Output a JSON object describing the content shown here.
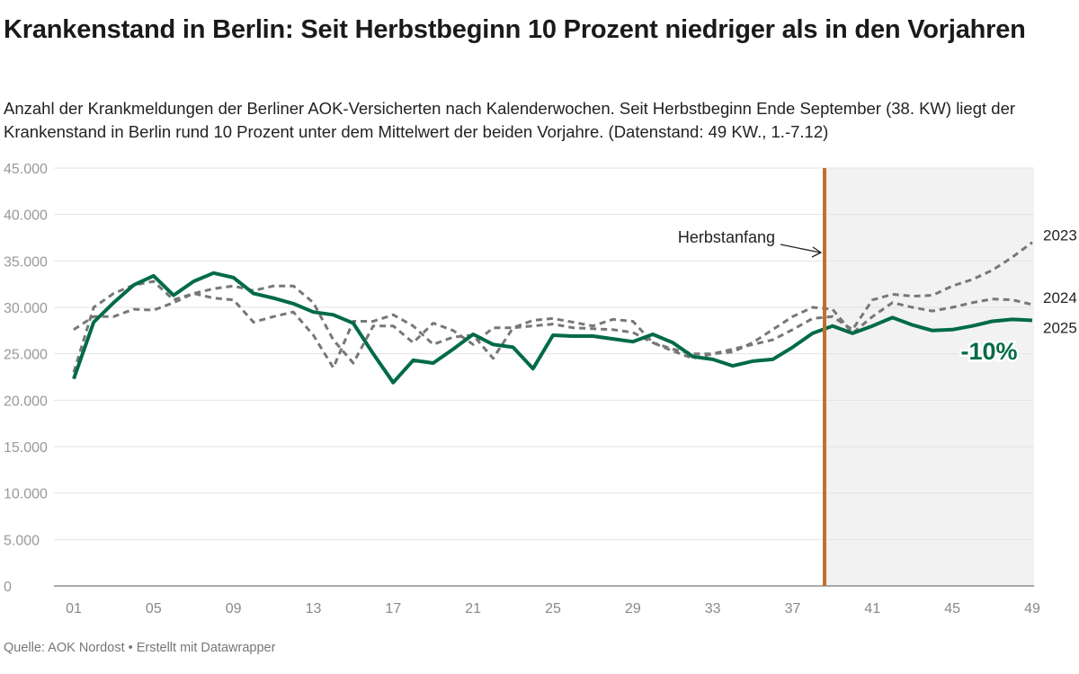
{
  "title": "Krankenstand in Berlin: Seit Herbstbeginn 10 Prozent niedriger als in den Vorjahren",
  "subtitle": "Anzahl der Krankmeldungen der Berliner AOK-Versicherten nach Kalenderwochen. Seit Herbstbeginn Ende September (38. KW) liegt der Krankenstand in Berlin rund 10 Prozent unter dem Mittelwert der beiden Vorjahre. (Datenstand: 49 KW., 1.-7.12)",
  "source": "Quelle: AOK Nordost • Erstellt mit Datawrapper",
  "chart_data": {
    "type": "line",
    "x": [
      1,
      2,
      3,
      4,
      5,
      6,
      7,
      8,
      9,
      10,
      11,
      12,
      13,
      14,
      15,
      16,
      17,
      18,
      19,
      20,
      21,
      22,
      23,
      24,
      25,
      26,
      27,
      28,
      29,
      30,
      31,
      32,
      33,
      34,
      35,
      36,
      37,
      38,
      39,
      40,
      41,
      42,
      43,
      44,
      45,
      46,
      47,
      48,
      49
    ],
    "xlim": [
      1,
      49
    ],
    "ylim": [
      0,
      45000
    ],
    "x_ticks": [
      "01",
      "05",
      "09",
      "13",
      "17",
      "21",
      "25",
      "29",
      "33",
      "37",
      "41",
      "45",
      "49"
    ],
    "x_tick_values": [
      1,
      5,
      9,
      13,
      17,
      21,
      25,
      29,
      33,
      37,
      41,
      45,
      49
    ],
    "y_ticks": [
      "0",
      "5.000",
      "10.000",
      "15.000",
      "20.000",
      "25.000",
      "30.000",
      "35.000",
      "40.000",
      "45.000"
    ],
    "y_tick_values": [
      0,
      5000,
      10000,
      15000,
      20000,
      25000,
      30000,
      35000,
      40000,
      45000
    ],
    "grid": true,
    "series": [
      {
        "name": "2023",
        "color": "#777777",
        "dashed": true,
        "values": [
          27600,
          29000,
          29000,
          29800,
          29700,
          30500,
          31500,
          31000,
          30800,
          28400,
          29000,
          29500,
          27000,
          23500,
          28500,
          28500,
          29200,
          28000,
          26000,
          26800,
          27000,
          24500,
          27800,
          28000,
          28200,
          27800,
          27700,
          27600,
          27300,
          26200,
          25500,
          25000,
          25000,
          25500,
          26000,
          26500,
          27600,
          28800,
          29000,
          27600,
          30800,
          31400,
          31200,
          31300,
          32300,
          33000,
          34000,
          35400,
          37000
        ]
      },
      {
        "name": "2024",
        "color": "#777777",
        "dashed": true,
        "values": [
          23000,
          30000,
          31500,
          32400,
          32800,
          30800,
          31500,
          32000,
          32300,
          31800,
          32300,
          32300,
          30500,
          26500,
          24000,
          28000,
          28000,
          26200,
          28300,
          27500,
          26000,
          27800,
          27800,
          28600,
          28800,
          28400,
          28000,
          28700,
          28500,
          26200,
          25300,
          24500,
          25000,
          25200,
          26200,
          27600,
          29000,
          30000,
          29800,
          27200,
          29000,
          30500,
          30000,
          29600,
          30000,
          30500,
          30900,
          30800,
          30300
        ]
      },
      {
        "name": "2025",
        "color": "#006b45",
        "dashed": false,
        "values": [
          22300,
          28400,
          30500,
          32400,
          33400,
          31300,
          32800,
          33700,
          33200,
          31500,
          31000,
          30400,
          29500,
          29200,
          28300,
          25000,
          21900,
          24300,
          24000,
          25500,
          27100,
          26000,
          25700,
          23400,
          27000,
          26900,
          26900,
          26600,
          26300,
          27100,
          26200,
          24700,
          24400,
          23700,
          24200,
          24400,
          25700,
          27200,
          28000,
          27200,
          28000,
          28900,
          28100,
          27500,
          27600,
          28000,
          28500,
          28700,
          28600
        ]
      }
    ],
    "marker": {
      "label": "Herbstanfang",
      "week": 38.6,
      "color": "#c0702e"
    },
    "highlight_region": {
      "from_week": 38.6,
      "to_week": 49,
      "color": "#f2f2f2"
    },
    "annotation": {
      "text": "-10%",
      "color": "#006b45"
    }
  }
}
